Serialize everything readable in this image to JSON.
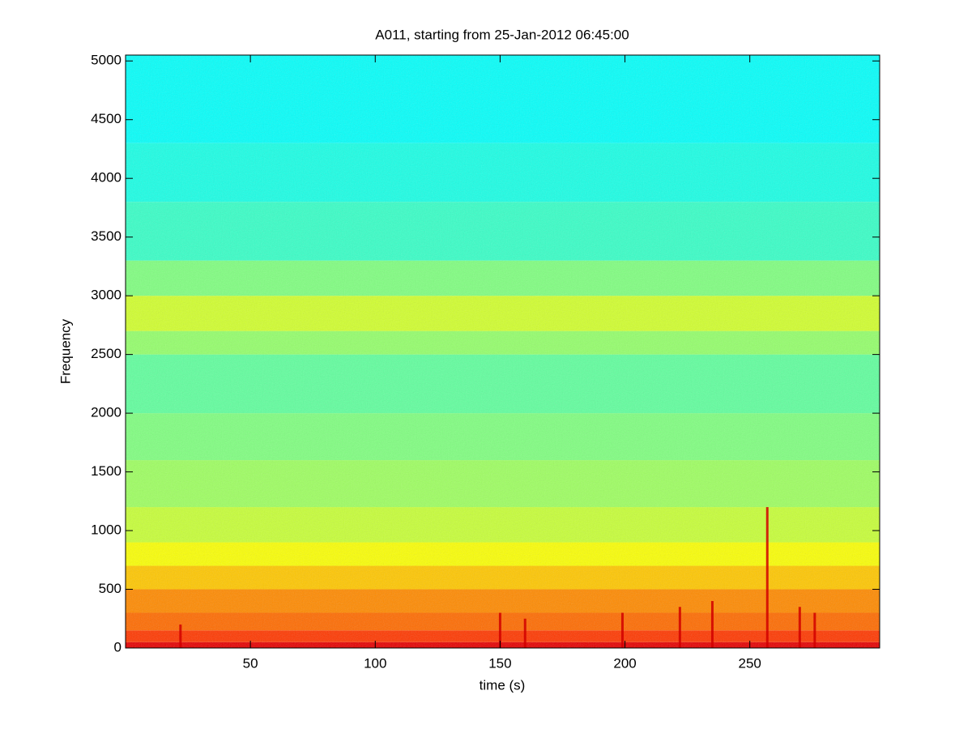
{
  "chart_data": {
    "type": "spectrogram",
    "title": "A011, starting from 25-Jan-2012 06:45:00",
    "x_label": "time (s)",
    "y_label": "Frequency",
    "colormap": "jet",
    "xlim": [
      0,
      302
    ],
    "ylim": [
      0,
      5050
    ],
    "xticks": [
      50,
      100,
      150,
      200,
      250
    ],
    "yticks": [
      0,
      500,
      1000,
      1500,
      2000,
      2500,
      3000,
      3500,
      4000,
      4500,
      5000
    ],
    "frequency_edges": [
      0,
      50,
      150,
      300,
      500,
      700,
      900,
      1200,
      1600,
      2000,
      2500,
      2700,
      3000,
      3300,
      3800,
      4300,
      5050
    ],
    "levels": [
      0.9,
      0.82,
      0.77,
      0.74,
      0.68,
      0.62,
      0.57,
      0.53,
      0.5,
      0.47,
      0.52,
      0.58,
      0.5,
      0.43,
      0.4,
      0.38
    ],
    "event_times": [
      22,
      150,
      160,
      199,
      222,
      235,
      257,
      270,
      276
    ],
    "event_heights": [
      200,
      300,
      250,
      300,
      350,
      400,
      1200,
      350,
      300
    ]
  }
}
